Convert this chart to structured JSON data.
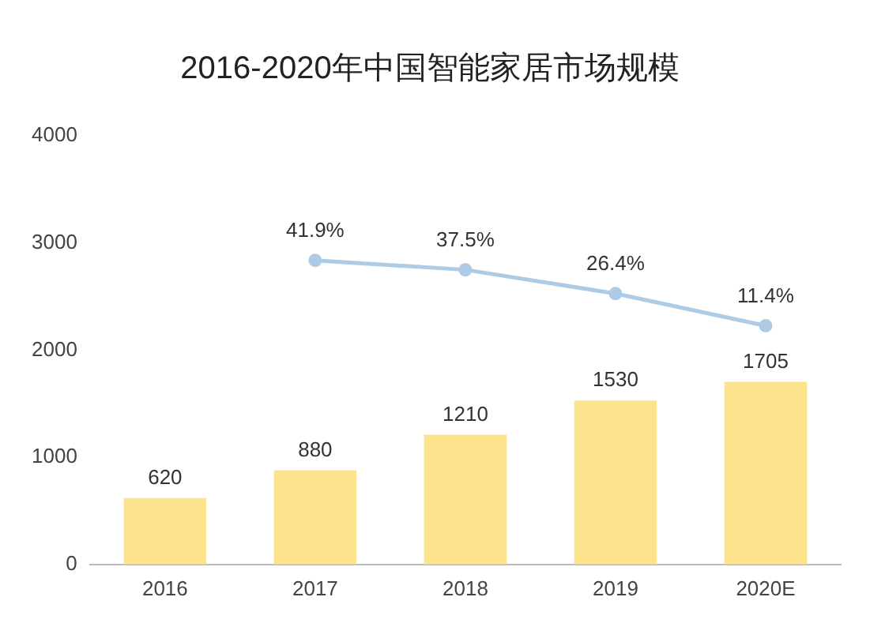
{
  "chart_data": {
    "type": "bar",
    "title": "2016-2020年中国智能家居市场规模",
    "categories": [
      "2016",
      "2017",
      "2018",
      "2019",
      "2020E"
    ],
    "series": [
      {
        "type": "bar",
        "color": "#fde38c",
        "values": [
          620,
          880,
          1210,
          1530,
          1705
        ],
        "value_labels": [
          "620",
          "880",
          "1210",
          "1530",
          "1705"
        ]
      },
      {
        "type": "line",
        "axis": "y2",
        "color": "#aecbe6",
        "marker": "circle",
        "values": [
          null,
          41.9,
          37.5,
          26.4,
          11.4
        ],
        "value_labels": [
          null,
          "41.9%",
          "37.5%",
          "26.4%",
          "11.4%"
        ]
      }
    ],
    "ylim": [
      0,
      4000
    ],
    "yticks": [
      0,
      1000,
      2000,
      3000,
      4000
    ],
    "tick_labels": "xy",
    "legend": false
  }
}
